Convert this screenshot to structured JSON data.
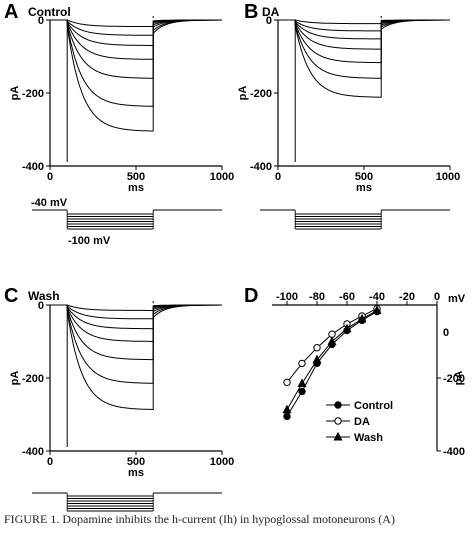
{
  "caption": "FIGURE 1.  Dopamine inhibits the h-current (Ih) in hypoglossal motoneurons (A)",
  "chart_data": [
    {
      "type": "line",
      "panel": "A",
      "title": "Control",
      "xlabel": "ms",
      "ylabel": "pA",
      "xlim": [
        0,
        1000
      ],
      "ylim": [
        -400,
        0
      ],
      "xticks": [
        0,
        500,
        1000
      ],
      "yticks": [
        0,
        -200,
        -400
      ],
      "step_start_ms": 100,
      "step_end_ms": 600,
      "series": [
        {
          "values": [
            0,
            0,
            -18
          ]
        },
        {
          "values": [
            0,
            -3,
            -42
          ]
        },
        {
          "values": [
            0,
            -5,
            -70
          ]
        },
        {
          "values": [
            0,
            -7,
            -108
          ]
        },
        {
          "values": [
            0,
            -10,
            -160
          ]
        },
        {
          "values": [
            0,
            -12,
            -237
          ]
        },
        {
          "values": [
            0,
            -15,
            -305
          ]
        }
      ],
      "protocol": {
        "hold_label": "-40 mV",
        "step_label": "-100 mV",
        "steps": 7
      }
    },
    {
      "type": "line",
      "panel": "B",
      "title": "DA",
      "xlabel": "ms",
      "ylabel": "pA",
      "xlim": [
        0,
        1000
      ],
      "ylim": [
        -400,
        0
      ],
      "xticks": [
        0,
        500,
        1000
      ],
      "yticks": [
        0,
        -200,
        -400
      ],
      "step_start_ms": 100,
      "step_end_ms": 600,
      "series": [
        {
          "values": [
            0,
            0,
            -10
          ]
        },
        {
          "values": [
            0,
            -3,
            -30
          ]
        },
        {
          "values": [
            0,
            -5,
            -52
          ]
        },
        {
          "values": [
            0,
            -7,
            -80
          ]
        },
        {
          "values": [
            0,
            -10,
            -117
          ]
        },
        {
          "values": [
            0,
            -12,
            -160
          ]
        },
        {
          "values": [
            0,
            -15,
            -212
          ]
        }
      ],
      "protocol": {
        "hold_label": "",
        "step_label": "",
        "steps": 7
      }
    },
    {
      "type": "line",
      "panel": "C",
      "title": "Wash",
      "xlabel": "ms",
      "ylabel": "pA",
      "xlim": [
        0,
        1000
      ],
      "ylim": [
        -400,
        0
      ],
      "xticks": [
        0,
        500,
        1000
      ],
      "yticks": [
        0,
        -200,
        -400
      ],
      "step_start_ms": 100,
      "step_end_ms": 600,
      "series": [
        {
          "values": [
            0,
            0,
            -15
          ]
        },
        {
          "values": [
            0,
            -3,
            -38
          ]
        },
        {
          "values": [
            0,
            -5,
            -65
          ]
        },
        {
          "values": [
            0,
            -7,
            -100
          ]
        },
        {
          "values": [
            0,
            -10,
            -150
          ]
        },
        {
          "values": [
            0,
            -12,
            -215
          ]
        },
        {
          "values": [
            0,
            -15,
            -287
          ]
        }
      ],
      "protocol": {
        "hold_label": "",
        "step_label": "",
        "steps": 7
      }
    },
    {
      "type": "line",
      "panel": "D",
      "title": "",
      "xlabel": "mV",
      "ylabel": "pA",
      "xlim": [
        -110,
        0
      ],
      "ylim": [
        -400,
        0
      ],
      "xticks": [
        -100,
        -80,
        -60,
        -40,
        -20,
        0
      ],
      "yticks": [
        0,
        -200,
        -400
      ],
      "legend_position": "bottom-left",
      "x": [
        -100,
        -90,
        -80,
        -70,
        -60,
        -50,
        -40
      ],
      "series": [
        {
          "name": "Control",
          "marker": "filled-circle",
          "values": [
            -305,
            -237,
            -160,
            -108,
            -70,
            -42,
            -18
          ]
        },
        {
          "name": "DA",
          "marker": "open-circle",
          "values": [
            -212,
            -160,
            -117,
            -80,
            -52,
            -30,
            -10
          ]
        },
        {
          "name": "Wash",
          "marker": "filled-triangle",
          "values": [
            -287,
            -215,
            -150,
            -100,
            -65,
            -38,
            -15
          ]
        }
      ]
    }
  ]
}
